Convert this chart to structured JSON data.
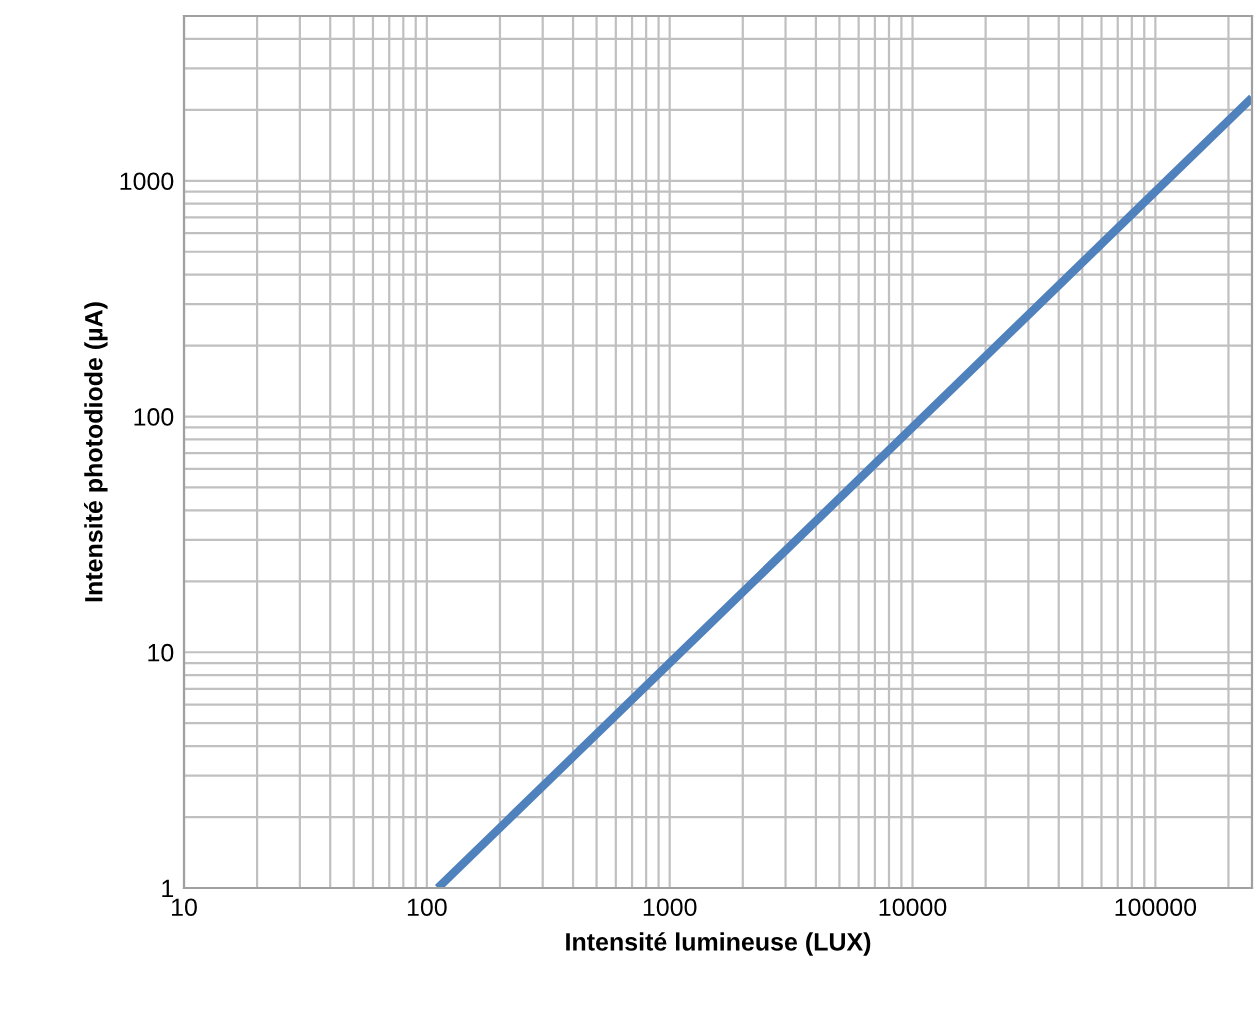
{
  "chart_data": {
    "type": "line",
    "xlabel": "Intensité lumineuse (LUX)",
    "ylabel": "Intensité photodiode (µA)",
    "log": "xy",
    "grid": true,
    "marker": "none",
    "line_style": "solid",
    "x": [
      111,
      1000,
      10000,
      100000,
      250000
    ],
    "series": [
      {
        "color": "#4f81bd",
        "values": [
          1,
          9,
          90,
          900,
          2250
        ]
      }
    ],
    "xlim": [
      10,
      250000
    ],
    "ylim": [
      1,
      5000
    ],
    "xticks": [
      10,
      100,
      1000,
      10000,
      100000
    ],
    "yticks": [
      1,
      10,
      100,
      1000
    ]
  }
}
